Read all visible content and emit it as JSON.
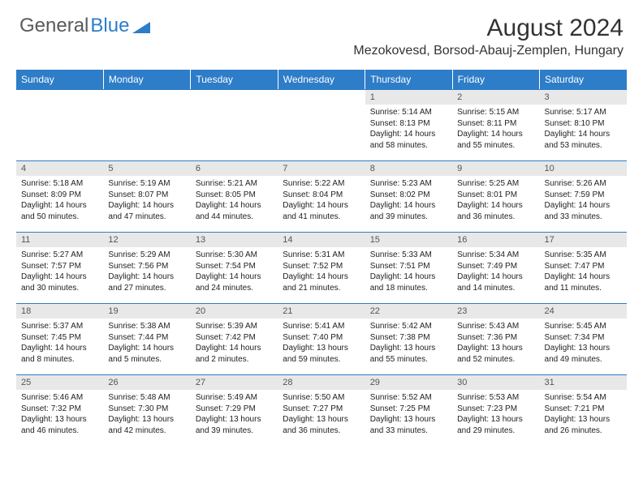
{
  "logo": {
    "text1": "General",
    "text2": "Blue"
  },
  "title": "August 2024",
  "location": "Mezokovesd, Borsod-Abauj-Zemplen, Hungary",
  "brand_color": "#2d7dc8",
  "header_bg": "#2d7dc8",
  "header_fg": "#ffffff",
  "daynum_bg": "#e8e8e8",
  "background": "#ffffff",
  "text_color": "#222222",
  "font_family": "Arial",
  "title_fontsize": 30,
  "location_fontsize": 16,
  "cell_fontsize": 10,
  "days": [
    "Sunday",
    "Monday",
    "Tuesday",
    "Wednesday",
    "Thursday",
    "Friday",
    "Saturday"
  ],
  "weeks": [
    [
      {
        "n": "",
        "lines": []
      },
      {
        "n": "",
        "lines": []
      },
      {
        "n": "",
        "lines": []
      },
      {
        "n": "",
        "lines": []
      },
      {
        "n": "1",
        "lines": [
          "Sunrise: 5:14 AM",
          "Sunset: 8:13 PM",
          "Daylight: 14 hours",
          "and 58 minutes."
        ]
      },
      {
        "n": "2",
        "lines": [
          "Sunrise: 5:15 AM",
          "Sunset: 8:11 PM",
          "Daylight: 14 hours",
          "and 55 minutes."
        ]
      },
      {
        "n": "3",
        "lines": [
          "Sunrise: 5:17 AM",
          "Sunset: 8:10 PM",
          "Daylight: 14 hours",
          "and 53 minutes."
        ]
      }
    ],
    [
      {
        "n": "4",
        "lines": [
          "Sunrise: 5:18 AM",
          "Sunset: 8:09 PM",
          "Daylight: 14 hours",
          "and 50 minutes."
        ]
      },
      {
        "n": "5",
        "lines": [
          "Sunrise: 5:19 AM",
          "Sunset: 8:07 PM",
          "Daylight: 14 hours",
          "and 47 minutes."
        ]
      },
      {
        "n": "6",
        "lines": [
          "Sunrise: 5:21 AM",
          "Sunset: 8:05 PM",
          "Daylight: 14 hours",
          "and 44 minutes."
        ]
      },
      {
        "n": "7",
        "lines": [
          "Sunrise: 5:22 AM",
          "Sunset: 8:04 PM",
          "Daylight: 14 hours",
          "and 41 minutes."
        ]
      },
      {
        "n": "8",
        "lines": [
          "Sunrise: 5:23 AM",
          "Sunset: 8:02 PM",
          "Daylight: 14 hours",
          "and 39 minutes."
        ]
      },
      {
        "n": "9",
        "lines": [
          "Sunrise: 5:25 AM",
          "Sunset: 8:01 PM",
          "Daylight: 14 hours",
          "and 36 minutes."
        ]
      },
      {
        "n": "10",
        "lines": [
          "Sunrise: 5:26 AM",
          "Sunset: 7:59 PM",
          "Daylight: 14 hours",
          "and 33 minutes."
        ]
      }
    ],
    [
      {
        "n": "11",
        "lines": [
          "Sunrise: 5:27 AM",
          "Sunset: 7:57 PM",
          "Daylight: 14 hours",
          "and 30 minutes."
        ]
      },
      {
        "n": "12",
        "lines": [
          "Sunrise: 5:29 AM",
          "Sunset: 7:56 PM",
          "Daylight: 14 hours",
          "and 27 minutes."
        ]
      },
      {
        "n": "13",
        "lines": [
          "Sunrise: 5:30 AM",
          "Sunset: 7:54 PM",
          "Daylight: 14 hours",
          "and 24 minutes."
        ]
      },
      {
        "n": "14",
        "lines": [
          "Sunrise: 5:31 AM",
          "Sunset: 7:52 PM",
          "Daylight: 14 hours",
          "and 21 minutes."
        ]
      },
      {
        "n": "15",
        "lines": [
          "Sunrise: 5:33 AM",
          "Sunset: 7:51 PM",
          "Daylight: 14 hours",
          "and 18 minutes."
        ]
      },
      {
        "n": "16",
        "lines": [
          "Sunrise: 5:34 AM",
          "Sunset: 7:49 PM",
          "Daylight: 14 hours",
          "and 14 minutes."
        ]
      },
      {
        "n": "17",
        "lines": [
          "Sunrise: 5:35 AM",
          "Sunset: 7:47 PM",
          "Daylight: 14 hours",
          "and 11 minutes."
        ]
      }
    ],
    [
      {
        "n": "18",
        "lines": [
          "Sunrise: 5:37 AM",
          "Sunset: 7:45 PM",
          "Daylight: 14 hours",
          "and 8 minutes."
        ]
      },
      {
        "n": "19",
        "lines": [
          "Sunrise: 5:38 AM",
          "Sunset: 7:44 PM",
          "Daylight: 14 hours",
          "and 5 minutes."
        ]
      },
      {
        "n": "20",
        "lines": [
          "Sunrise: 5:39 AM",
          "Sunset: 7:42 PM",
          "Daylight: 14 hours",
          "and 2 minutes."
        ]
      },
      {
        "n": "21",
        "lines": [
          "Sunrise: 5:41 AM",
          "Sunset: 7:40 PM",
          "Daylight: 13 hours",
          "and 59 minutes."
        ]
      },
      {
        "n": "22",
        "lines": [
          "Sunrise: 5:42 AM",
          "Sunset: 7:38 PM",
          "Daylight: 13 hours",
          "and 55 minutes."
        ]
      },
      {
        "n": "23",
        "lines": [
          "Sunrise: 5:43 AM",
          "Sunset: 7:36 PM",
          "Daylight: 13 hours",
          "and 52 minutes."
        ]
      },
      {
        "n": "24",
        "lines": [
          "Sunrise: 5:45 AM",
          "Sunset: 7:34 PM",
          "Daylight: 13 hours",
          "and 49 minutes."
        ]
      }
    ],
    [
      {
        "n": "25",
        "lines": [
          "Sunrise: 5:46 AM",
          "Sunset: 7:32 PM",
          "Daylight: 13 hours",
          "and 46 minutes."
        ]
      },
      {
        "n": "26",
        "lines": [
          "Sunrise: 5:48 AM",
          "Sunset: 7:30 PM",
          "Daylight: 13 hours",
          "and 42 minutes."
        ]
      },
      {
        "n": "27",
        "lines": [
          "Sunrise: 5:49 AM",
          "Sunset: 7:29 PM",
          "Daylight: 13 hours",
          "and 39 minutes."
        ]
      },
      {
        "n": "28",
        "lines": [
          "Sunrise: 5:50 AM",
          "Sunset: 7:27 PM",
          "Daylight: 13 hours",
          "and 36 minutes."
        ]
      },
      {
        "n": "29",
        "lines": [
          "Sunrise: 5:52 AM",
          "Sunset: 7:25 PM",
          "Daylight: 13 hours",
          "and 33 minutes."
        ]
      },
      {
        "n": "30",
        "lines": [
          "Sunrise: 5:53 AM",
          "Sunset: 7:23 PM",
          "Daylight: 13 hours",
          "and 29 minutes."
        ]
      },
      {
        "n": "31",
        "lines": [
          "Sunrise: 5:54 AM",
          "Sunset: 7:21 PM",
          "Daylight: 13 hours",
          "and 26 minutes."
        ]
      }
    ]
  ]
}
